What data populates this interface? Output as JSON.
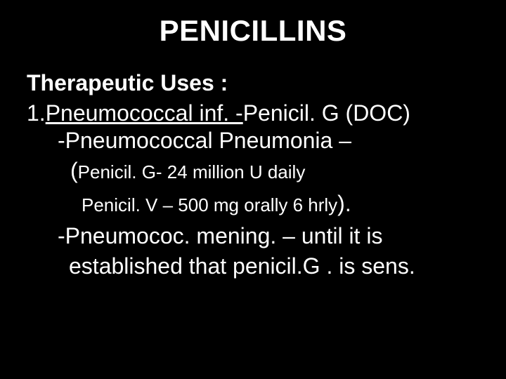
{
  "colors": {
    "background": "#000000",
    "text": "#ffffff"
  },
  "typography": {
    "family": "Arial",
    "title_fontsize_pt": 32,
    "body_fontsize_pt": 24,
    "dose_fontsize_pt": 20
  },
  "title": "PENICILLINS",
  "subheading": "Therapeutic Uses :",
  "item1_prefix": "1.",
  "item1_underlined": "Pneumococcal inf. -",
  "item1_rest": "Penicil. G (DOC)",
  "sub1": "-Pneumococcal Pneumonia –",
  "dose_open_paren": "(",
  "dose_line1": "Penicil. G- 24 million U daily",
  "dose_line2": "Penicil. V – 500 mg orally 6 hrly",
  "dose_close_paren": ").",
  "sub2_line1": "-Pneumococ. mening. – until it is",
  "sub2_line2": "established that penicil.G . is sens."
}
